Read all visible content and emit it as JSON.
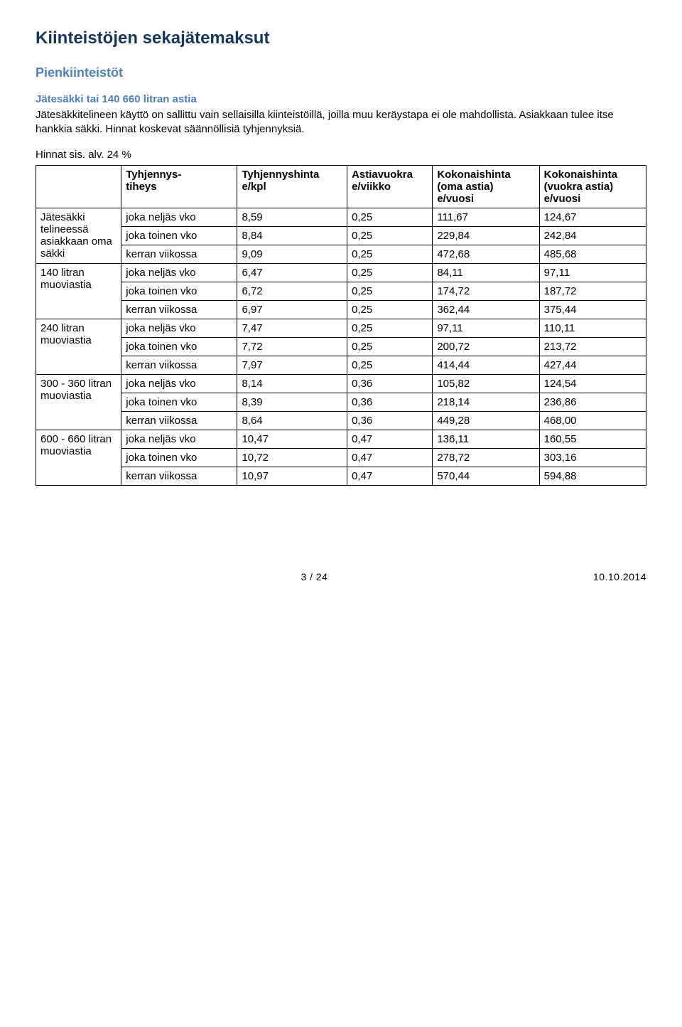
{
  "heading1": "Kiinteistöjen sekajätemaksut",
  "heading2": "Pienkiinteistöt",
  "heading3": "Jätesäkki tai 140 660 litran astia",
  "intro": "Jätesäkkitelineen käyttö on sallittu vain sellaisilla kiinteistöillä, joilla muu keräystapa ei ole mahdollista. Asiakkaan tulee itse hankkia säkki. Hinnat koskevat säännöllisiä tyhjennyksiä.",
  "note": "Hinnat sis. alv. 24 %",
  "colors": {
    "h1": "#17365d",
    "h2": "#4f81bd",
    "h3": "#4f81bd",
    "text": "#000000",
    "border": "#000000",
    "bg": "#ffffff"
  },
  "table": {
    "headers": [
      "",
      "Tyhjennys-\ntiheys",
      "Tyhjennyshinta\ne/kpl",
      "Astiavuokra\ne/viikko",
      "Kokonaishinta\n(oma astia)\ne/vuosi",
      "Kokonaishinta\n(vuokra astia)\ne/vuosi"
    ],
    "groups": [
      {
        "label": "Jätesäkki telineessä asiakkaan oma säkki",
        "rows": [
          [
            "joka neljäs vko",
            "8,59",
            "0,25",
            "111,67",
            "124,67"
          ],
          [
            "joka toinen vko",
            "8,84",
            "0,25",
            "229,84",
            "242,84"
          ],
          [
            "kerran viikossa",
            "9,09",
            "0,25",
            "472,68",
            "485,68"
          ]
        ]
      },
      {
        "label": "140 litran muoviastia",
        "rows": [
          [
            "joka neljäs vko",
            "6,47",
            "0,25",
            "84,11",
            "97,11"
          ],
          [
            "joka toinen vko",
            "6,72",
            "0,25",
            "174,72",
            "187,72"
          ],
          [
            "kerran viikossa",
            "6,97",
            "0,25",
            "362,44",
            "375,44"
          ]
        ]
      },
      {
        "label": "240 litran muoviastia",
        "rows": [
          [
            "joka neljäs vko",
            "7,47",
            "0,25",
            "97,11",
            "110,11"
          ],
          [
            "joka toinen vko",
            "7,72",
            "0,25",
            "200,72",
            "213,72"
          ],
          [
            "kerran viikossa",
            "7,97",
            "0,25",
            "414,44",
            "427,44"
          ]
        ]
      },
      {
        "label": "300 - 360 litran muoviastia",
        "rows": [
          [
            "joka neljäs vko",
            "8,14",
            "0,36",
            "105,82",
            "124,54"
          ],
          [
            "joka toinen vko",
            "8,39",
            "0,36",
            "218,14",
            "236,86"
          ],
          [
            "kerran viikossa",
            "8,64",
            "0,36",
            "449,28",
            "468,00"
          ]
        ]
      },
      {
        "label": "600 - 660 litran muoviastia",
        "rows": [
          [
            "joka neljäs vko",
            "10,47",
            "0,47",
            "136,11",
            "160,55"
          ],
          [
            "joka toinen vko",
            "10,72",
            "0,47",
            "278,72",
            "303,16"
          ],
          [
            "kerran viikossa",
            "10,97",
            "0,47",
            "570,44",
            "594,88"
          ]
        ]
      }
    ]
  },
  "footer": {
    "page": "3 / 24",
    "date": "10.10.2014"
  }
}
